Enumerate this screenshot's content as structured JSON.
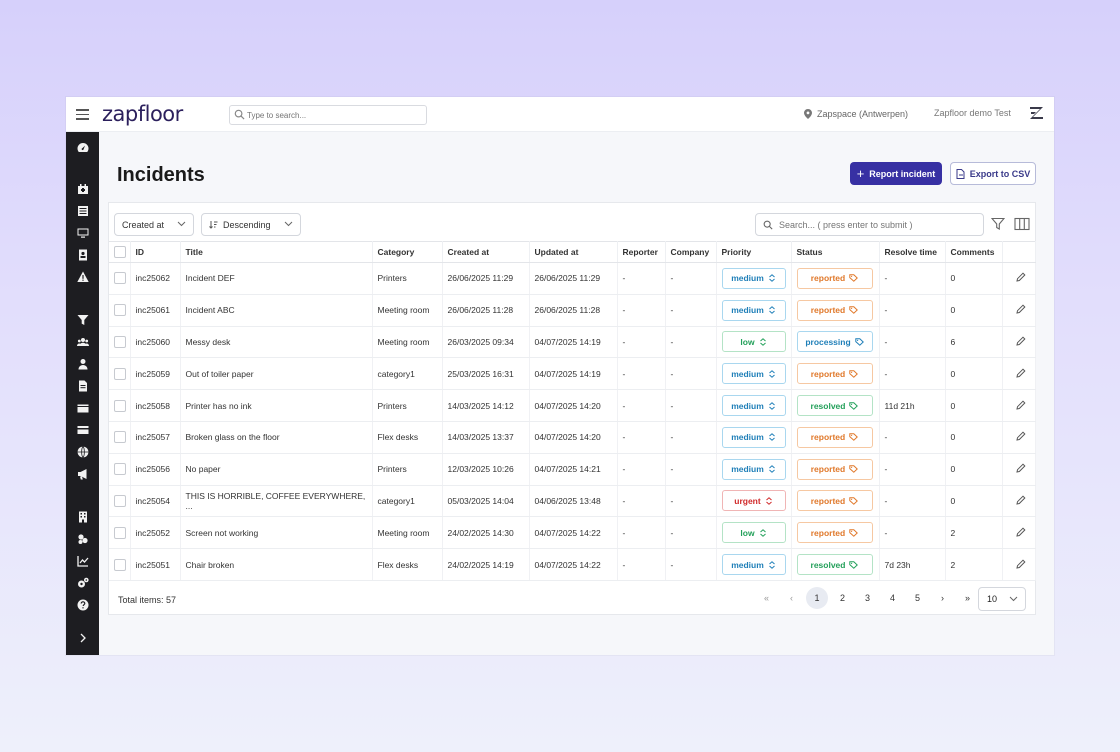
{
  "app": {
    "logo": "zapfloor",
    "search_placeholder": "Type to search...",
    "location": "Zapspace (Antwerpen)",
    "user": "Zapfloor demo Test"
  },
  "page": {
    "title": "Incidents",
    "report_button": "Report incident",
    "export_button": "Export to CSV"
  },
  "toolbar": {
    "sort_field": "Created at",
    "sort_order": "Descending",
    "search_placeholder": "Search... ( press enter to submit )"
  },
  "table": {
    "columns": [
      "ID",
      "Title",
      "Category",
      "Created at",
      "Updated at",
      "Reporter",
      "Company",
      "Priority",
      "Status",
      "Resolve time",
      "Comments"
    ],
    "rows": [
      {
        "id": "inc25062",
        "title": "Incident DEF",
        "category": "Printers",
        "created": "26/06/2025 11:29",
        "updated": "26/06/2025 11:29",
        "reporter": "-",
        "company": "-",
        "priority": "medium",
        "status": "reported",
        "resolve": "-",
        "comments": "0"
      },
      {
        "id": "inc25061",
        "title": "Incident ABC",
        "category": "Meeting room",
        "created": "26/06/2025 11:28",
        "updated": "26/06/2025 11:28",
        "reporter": "-",
        "company": "-",
        "priority": "medium",
        "status": "reported",
        "resolve": "-",
        "comments": "0"
      },
      {
        "id": "inc25060",
        "title": "Messy desk",
        "category": "Meeting room",
        "created": "26/03/2025 09:34",
        "updated": "04/07/2025 14:19",
        "reporter": "-",
        "company": "-",
        "priority": "low",
        "status": "processing",
        "resolve": "-",
        "comments": "6"
      },
      {
        "id": "inc25059",
        "title": "Out of toiler paper",
        "category": "category1",
        "created": "25/03/2025 16:31",
        "updated": "04/07/2025 14:19",
        "reporter": "-",
        "company": "-",
        "priority": "medium",
        "status": "reported",
        "resolve": "-",
        "comments": "0"
      },
      {
        "id": "inc25058",
        "title": "Printer has no ink",
        "category": "Printers",
        "created": "14/03/2025 14:12",
        "updated": "04/07/2025 14:20",
        "reporter": "-",
        "company": "-",
        "priority": "medium",
        "status": "resolved",
        "resolve": "11d 21h",
        "comments": "0"
      },
      {
        "id": "inc25057",
        "title": "Broken glass on the floor",
        "category": "Flex desks",
        "created": "14/03/2025 13:37",
        "updated": "04/07/2025 14:20",
        "reporter": "-",
        "company": "-",
        "priority": "medium",
        "status": "reported",
        "resolve": "-",
        "comments": "0"
      },
      {
        "id": "inc25056",
        "title": "No paper",
        "category": "Printers",
        "created": "12/03/2025 10:26",
        "updated": "04/07/2025 14:21",
        "reporter": "-",
        "company": "-",
        "priority": "medium",
        "status": "reported",
        "resolve": "-",
        "comments": "0"
      },
      {
        "id": "inc25054",
        "title": "THIS IS HORRIBLE, COFFEE EVERYWHERE, ...",
        "category": "category1",
        "created": "05/03/2025 14:04",
        "updated": "04/06/2025 13:48",
        "reporter": "-",
        "company": "-",
        "priority": "urgent",
        "status": "reported",
        "resolve": "-",
        "comments": "0"
      },
      {
        "id": "inc25052",
        "title": "Screen not working",
        "category": "Meeting room",
        "created": "24/02/2025 14:30",
        "updated": "04/07/2025 14:22",
        "reporter": "-",
        "company": "-",
        "priority": "low",
        "status": "reported",
        "resolve": "-",
        "comments": "2"
      },
      {
        "id": "inc25051",
        "title": "Chair broken",
        "category": "Flex desks",
        "created": "24/02/2025 14:19",
        "updated": "04/07/2025 14:22",
        "reporter": "-",
        "company": "-",
        "priority": "medium",
        "status": "resolved",
        "resolve": "7d 23h",
        "comments": "2"
      }
    ]
  },
  "footer": {
    "total": "Total items: 57",
    "first": "«",
    "prev": "‹",
    "pages": [
      "1",
      "2",
      "3",
      "4",
      "5"
    ],
    "next": "›",
    "last": "»",
    "page_size": "10"
  },
  "colors": {
    "primary": "#3730a3",
    "sidebar": "#1d1d21",
    "medium": "#1f7fb8",
    "low": "#23a05a",
    "urgent": "#d02a2a",
    "reported": "#e0782a"
  }
}
